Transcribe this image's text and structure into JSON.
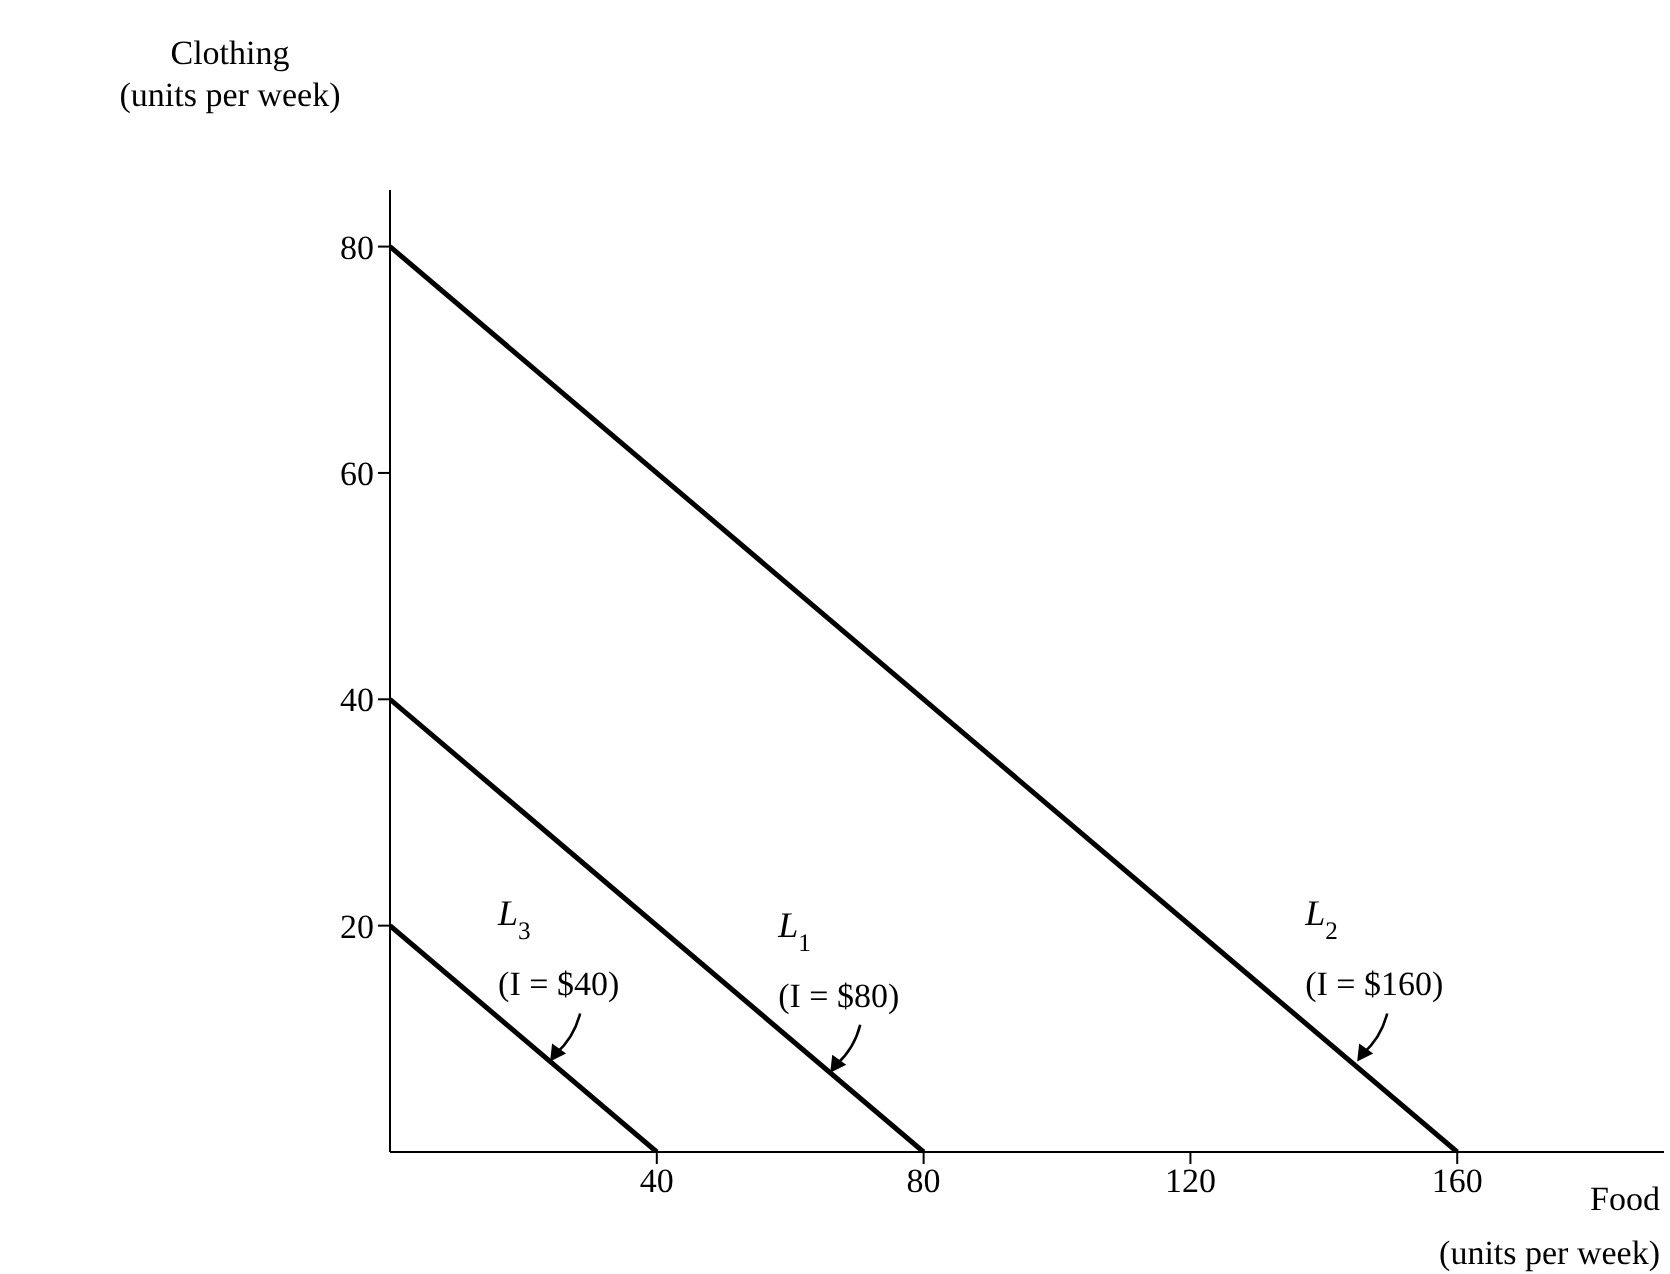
{
  "chart_data": {
    "type": "line",
    "xlabel": "Food\n(units per week)",
    "ylabel": "Clothing\n(units per week)",
    "xlim": [
      0,
      191
    ],
    "ylim": [
      0,
      85
    ],
    "xticks": [
      40,
      80,
      120,
      160
    ],
    "yticks": [
      20,
      40,
      60,
      80
    ],
    "grid": false,
    "legend": false,
    "marker": "none",
    "line_style": "solid",
    "series": [
      {
        "name": "L$_{3}$",
        "color": "#000000",
        "x": [
          0,
          40
        ],
        "values": [
          20,
          0
        ]
      },
      {
        "name": "L$_{1}$",
        "color": "#000000",
        "x": [
          0,
          80
        ],
        "values": [
          40,
          0
        ]
      },
      {
        "name": "L$_{2}$",
        "color": "#000000",
        "x": [
          0,
          160
        ],
        "values": [
          80,
          0
        ]
      }
    ],
    "annotations": [
      {
        "text": "(I = $40)",
        "x": 24,
        "y": 8
      },
      {
        "text": "(I = $80)",
        "x": 66,
        "y": 7
      },
      {
        "text": "(I = $160)",
        "x": 145,
        "y": 8
      }
    ]
  }
}
